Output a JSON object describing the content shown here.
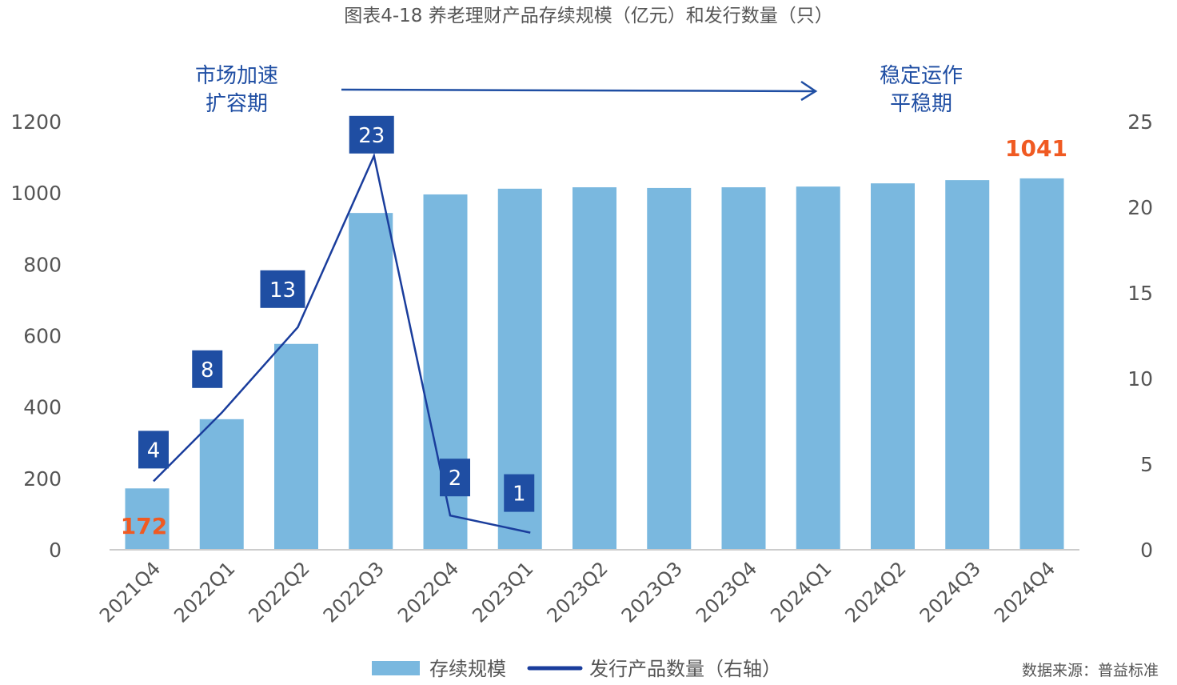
{
  "chart_data": {
    "type": "bar+line",
    "title": "图表4-18 养老理财产品存续规模（亿元）和发行数量（只）",
    "categories": [
      "2021Q4",
      "2022Q1",
      "2022Q2",
      "2022Q3",
      "2022Q4",
      "2023Q1",
      "2023Q2",
      "2023Q3",
      "2023Q4",
      "2024Q1",
      "2024Q2",
      "2024Q3",
      "2024Q4"
    ],
    "series": [
      {
        "name": "存续规模",
        "type": "bar",
        "axis": "left",
        "color": "#7ab8df",
        "values": [
          172,
          366,
          577,
          944,
          996,
          1012,
          1016,
          1014,
          1016,
          1018,
          1027,
          1036,
          1041
        ]
      },
      {
        "name": "发行产品数量（右轴）",
        "type": "line",
        "axis": "right",
        "color": "#1a3d9c",
        "values": [
          4,
          8,
          13,
          23,
          2,
          1,
          null,
          null,
          null,
          null,
          null,
          null,
          null
        ]
      }
    ],
    "y_left": {
      "min": 0,
      "max": 1200,
      "ticks": [
        "0",
        "200",
        "400",
        "600",
        "800",
        "1000",
        "1200"
      ]
    },
    "y_right": {
      "min": 0,
      "max": 25,
      "ticks": [
        "0",
        "5",
        "10",
        "15",
        "20",
        "25"
      ]
    },
    "bar_labels": [
      {
        "index": 0,
        "text": "172"
      },
      {
        "index": 12,
        "text": "1041"
      }
    ],
    "line_labels": [
      "4",
      "8",
      "13",
      "23",
      "2",
      "1"
    ],
    "annotations": {
      "phase1": [
        "市场加速",
        "扩容期"
      ],
      "phase2": [
        "稳定运作",
        "平稳期"
      ]
    },
    "legend_position": "bottom",
    "grid": false,
    "highlight_color": "#f05a22",
    "label_box_color": "#1f4ea3"
  },
  "source": "数据来源：普益标准"
}
